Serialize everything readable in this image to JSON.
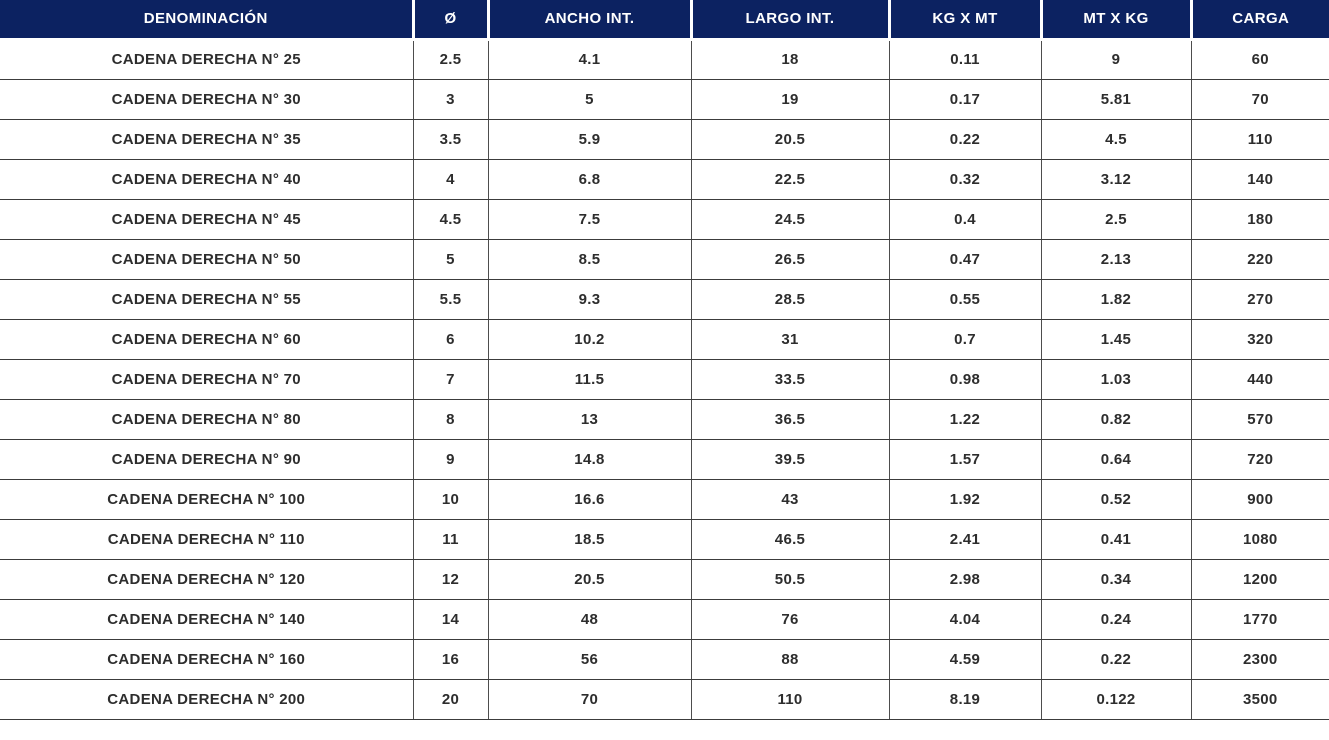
{
  "colors": {
    "header_background": "#0c2261",
    "header_text": "#ffffff",
    "body_text": "#2d2d2d",
    "row_line": "#3c3c3c",
    "column_line": "#4d4d4d",
    "page_background": "#ffffff"
  },
  "chart_data": {
    "type": "table",
    "columns": [
      "DENOMINACIÓN",
      "Ø",
      "ANCHO INT.",
      "LARGO INT.",
      "KG X MT",
      "MT X KG",
      "CARGA"
    ],
    "rows": [
      [
        "CADENA DERECHA N° 25",
        "2.5",
        "4.1",
        "18",
        "0.11",
        "9",
        "60"
      ],
      [
        "CADENA DERECHA N° 30",
        "3",
        "5",
        "19",
        "0.17",
        "5.81",
        "70"
      ],
      [
        "CADENA DERECHA N° 35",
        "3.5",
        "5.9",
        "20.5",
        "0.22",
        "4.5",
        "110"
      ],
      [
        "CADENA DERECHA N° 40",
        "4",
        "6.8",
        "22.5",
        "0.32",
        "3.12",
        "140"
      ],
      [
        "CADENA DERECHA N° 45",
        "4.5",
        "7.5",
        "24.5",
        "0.4",
        "2.5",
        "180"
      ],
      [
        "CADENA DERECHA N° 50",
        "5",
        "8.5",
        "26.5",
        "0.47",
        "2.13",
        "220"
      ],
      [
        "CADENA DERECHA N° 55",
        "5.5",
        "9.3",
        "28.5",
        "0.55",
        "1.82",
        "270"
      ],
      [
        "CADENA DERECHA N° 60",
        "6",
        "10.2",
        "31",
        "0.7",
        "1.45",
        "320"
      ],
      [
        "CADENA DERECHA N° 70",
        "7",
        "11.5",
        "33.5",
        "0.98",
        "1.03",
        "440"
      ],
      [
        "CADENA DERECHA N° 80",
        "8",
        "13",
        "36.5",
        "1.22",
        "0.82",
        "570"
      ],
      [
        "CADENA DERECHA N° 90",
        "9",
        "14.8",
        "39.5",
        "1.57",
        "0.64",
        "720"
      ],
      [
        "CADENA DERECHA N° 100",
        "10",
        "16.6",
        "43",
        "1.92",
        "0.52",
        "900"
      ],
      [
        "CADENA DERECHA N° 110",
        "11",
        "18.5",
        "46.5",
        "2.41",
        "0.41",
        "1080"
      ],
      [
        "CADENA DERECHA N° 120",
        "12",
        "20.5",
        "50.5",
        "2.98",
        "0.34",
        "1200"
      ],
      [
        "CADENA DERECHA N° 140",
        "14",
        "48",
        "76",
        "4.04",
        "0.24",
        "1770"
      ],
      [
        "CADENA DERECHA N° 160",
        "16",
        "56",
        "88",
        "4.59",
        "0.22",
        "2300"
      ],
      [
        "CADENA DERECHA N° 200",
        "20",
        "70",
        "110",
        "8.19",
        "0.122",
        "3500"
      ]
    ]
  }
}
